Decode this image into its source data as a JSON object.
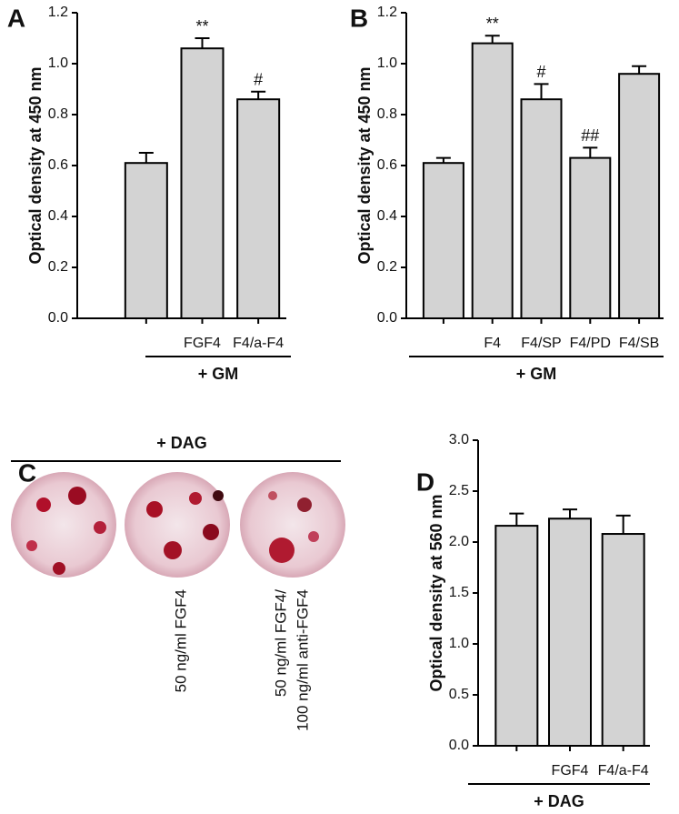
{
  "chart_data": [
    {
      "type": "bar",
      "panel_label": "A",
      "ylabel": "Optical density at 450 nm",
      "group_label": "+ GM",
      "categories": [
        null,
        "FGF4",
        "F4/a-F4"
      ],
      "values": [
        0.61,
        1.06,
        0.86
      ],
      "errors": [
        0.04,
        0.04,
        0.03
      ],
      "annotations": [
        null,
        "**",
        "#"
      ],
      "color": "#d3d3d3",
      "ylim": [
        0,
        1.2
      ],
      "yticks": [
        {
          "value": 0,
          "label": "0.0"
        },
        0.2,
        0.4,
        0.6,
        0.8,
        {
          "value": 1,
          "label": "1.0"
        },
        1.2
      ]
    },
    {
      "type": "bar",
      "panel_label": "B",
      "ylabel": "Optical density at 450 nm",
      "group_label": "+ GM",
      "categories": [
        null,
        "F4",
        "F4/SP",
        "F4/PD",
        "F4/SB"
      ],
      "values": [
        0.61,
        1.08,
        0.86,
        0.63,
        0.96
      ],
      "errors": [
        0.02,
        0.03,
        0.06,
        0.04,
        0.03
      ],
      "annotations": [
        null,
        "**",
        "#",
        "##",
        null
      ],
      "color": "#d3d3d3",
      "ylim": [
        0,
        1.2
      ],
      "yticks": [
        {
          "value": 0,
          "label": "0.0"
        },
        0.2,
        0.4,
        0.6,
        0.8,
        {
          "value": 1,
          "label": "1.0"
        },
        1.2
      ]
    },
    {
      "type": "bar",
      "panel_label": "D",
      "ylabel": "Optical density at 560 nm",
      "group_label": "+ DAG",
      "categories": [
        null,
        "FGF4",
        "F4/a-F4"
      ],
      "values": [
        2.16,
        2.23,
        2.08
      ],
      "errors": [
        0.12,
        0.09,
        0.18
      ],
      "annotations": [
        null,
        null,
        null
      ],
      "color": "#d3d3d3",
      "ylim": [
        0,
        3
      ],
      "yticks": [
        {
          "value": 0,
          "label": "0.0"
        },
        0.5,
        {
          "value": 1,
          "label": "1.0"
        },
        1.5,
        {
          "value": 2,
          "label": "2.0"
        },
        2.5,
        {
          "value": 3,
          "label": "3.0"
        }
      ]
    }
  ],
  "image_panel": {
    "panel_label": "C",
    "group_label": "+ DAG",
    "captions": [
      null,
      [
        "50 ng/ml FGF4"
      ],
      [
        "50 ng/ml FGF4/",
        "100 ng/ml anti-FGF4"
      ]
    ]
  }
}
